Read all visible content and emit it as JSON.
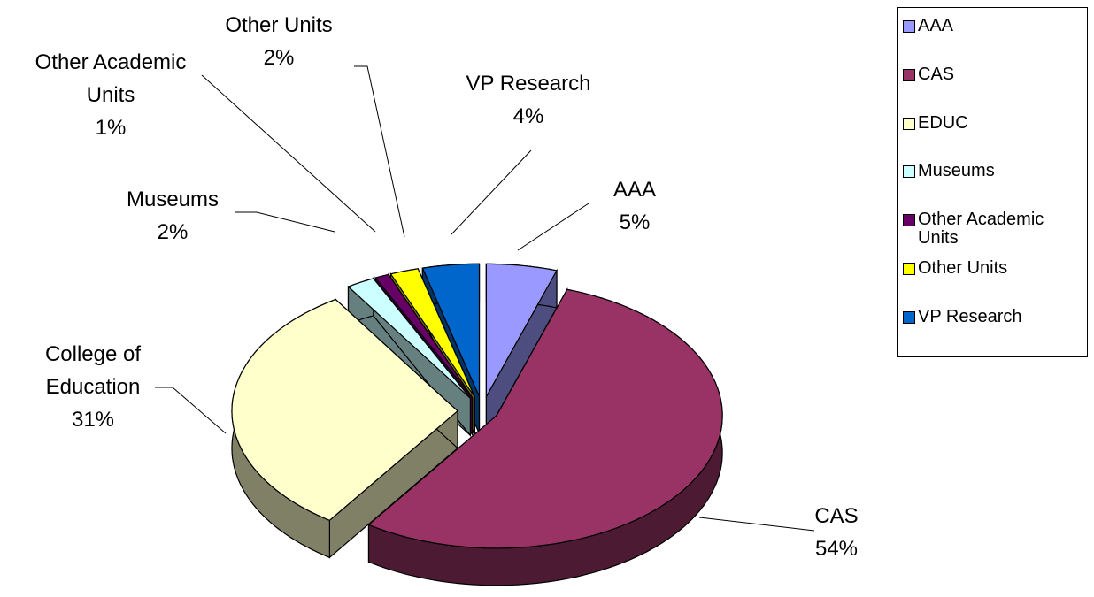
{
  "chart_data": {
    "type": "pie",
    "categories": [
      "AAA",
      "CAS",
      "EDUC",
      "Museums",
      "Other Academic Units",
      "Other Units",
      "VP Research"
    ],
    "data_labels": [
      "AAA",
      "CAS",
      "College of Education",
      "Museums",
      "Other Academic Units",
      "Other Units",
      "VP Research"
    ],
    "values": [
      5,
      54,
      31,
      2,
      1,
      2,
      4
    ],
    "value_labels": [
      "5%",
      "54%",
      "31%",
      "2%",
      "1%",
      "2%",
      "4%"
    ],
    "colors": [
      "#9999ff",
      "#993366",
      "#ffffcc",
      "#ccffff",
      "#660066",
      "#ffff00",
      "#0066cc"
    ],
    "legend": "right"
  }
}
